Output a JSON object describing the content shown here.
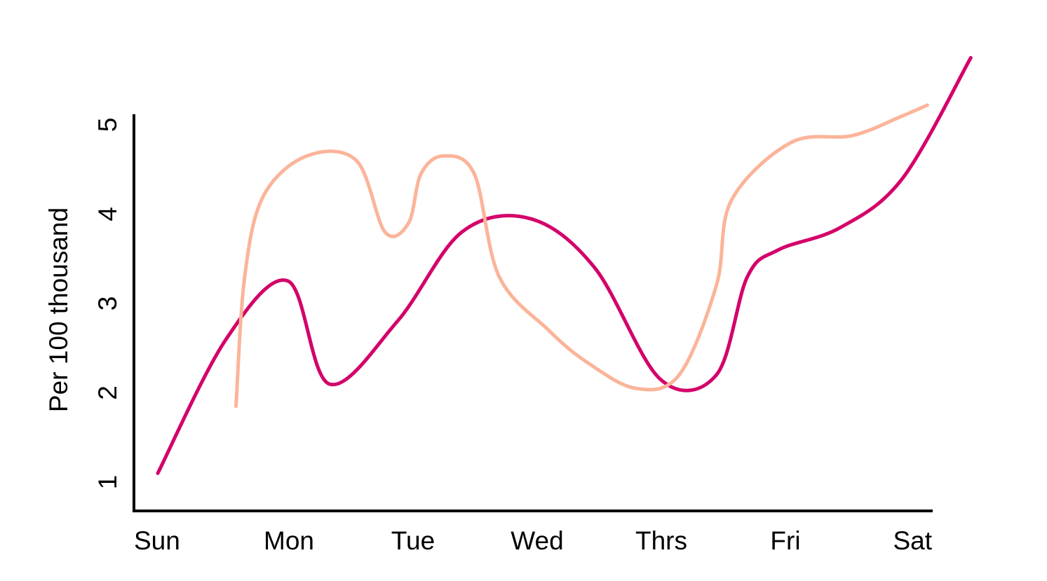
{
  "chart_data": {
    "type": "line",
    "title": "",
    "xlabel": "",
    "ylabel": "Per 100 thousand",
    "categories": [
      "Sun",
      "Mon",
      "Tue",
      "Wed",
      "Thrs",
      "Fri",
      "Sat"
    ],
    "yticks": [
      "1",
      "2",
      "3",
      "4",
      "5"
    ],
    "ylim": [
      0.8,
      5.2
    ],
    "grid": false,
    "legend": "none",
    "series": [
      {
        "color": "#d4006a",
        "points": [
          [
            0.0,
            1.1
          ],
          [
            0.55,
            2.6
          ],
          [
            1.05,
            3.25
          ],
          [
            1.38,
            2.1
          ],
          [
            1.93,
            2.8
          ],
          [
            2.45,
            3.8
          ],
          [
            3.0,
            3.95
          ],
          [
            3.52,
            3.4
          ],
          [
            4.05,
            2.15
          ],
          [
            4.5,
            2.2
          ],
          [
            4.75,
            3.3
          ],
          [
            5.0,
            3.6
          ],
          [
            5.5,
            3.85
          ],
          [
            6.0,
            4.4
          ],
          [
            6.55,
            5.75
          ]
        ]
      },
      {
        "color": "#fbb49a",
        "points": [
          [
            0.63,
            1.85
          ],
          [
            0.7,
            3.3
          ],
          [
            0.85,
            4.2
          ],
          [
            1.2,
            4.65
          ],
          [
            1.6,
            4.6
          ],
          [
            1.83,
            3.8
          ],
          [
            2.02,
            3.9
          ],
          [
            2.12,
            4.45
          ],
          [
            2.3,
            4.65
          ],
          [
            2.55,
            4.45
          ],
          [
            2.75,
            3.3
          ],
          [
            3.15,
            2.7
          ],
          [
            3.45,
            2.35
          ],
          [
            3.85,
            2.05
          ],
          [
            4.2,
            2.2
          ],
          [
            4.5,
            3.2
          ],
          [
            4.62,
            4.15
          ],
          [
            5.1,
            4.8
          ],
          [
            5.6,
            4.88
          ],
          [
            6.0,
            5.1
          ],
          [
            6.2,
            5.22
          ]
        ]
      }
    ]
  }
}
